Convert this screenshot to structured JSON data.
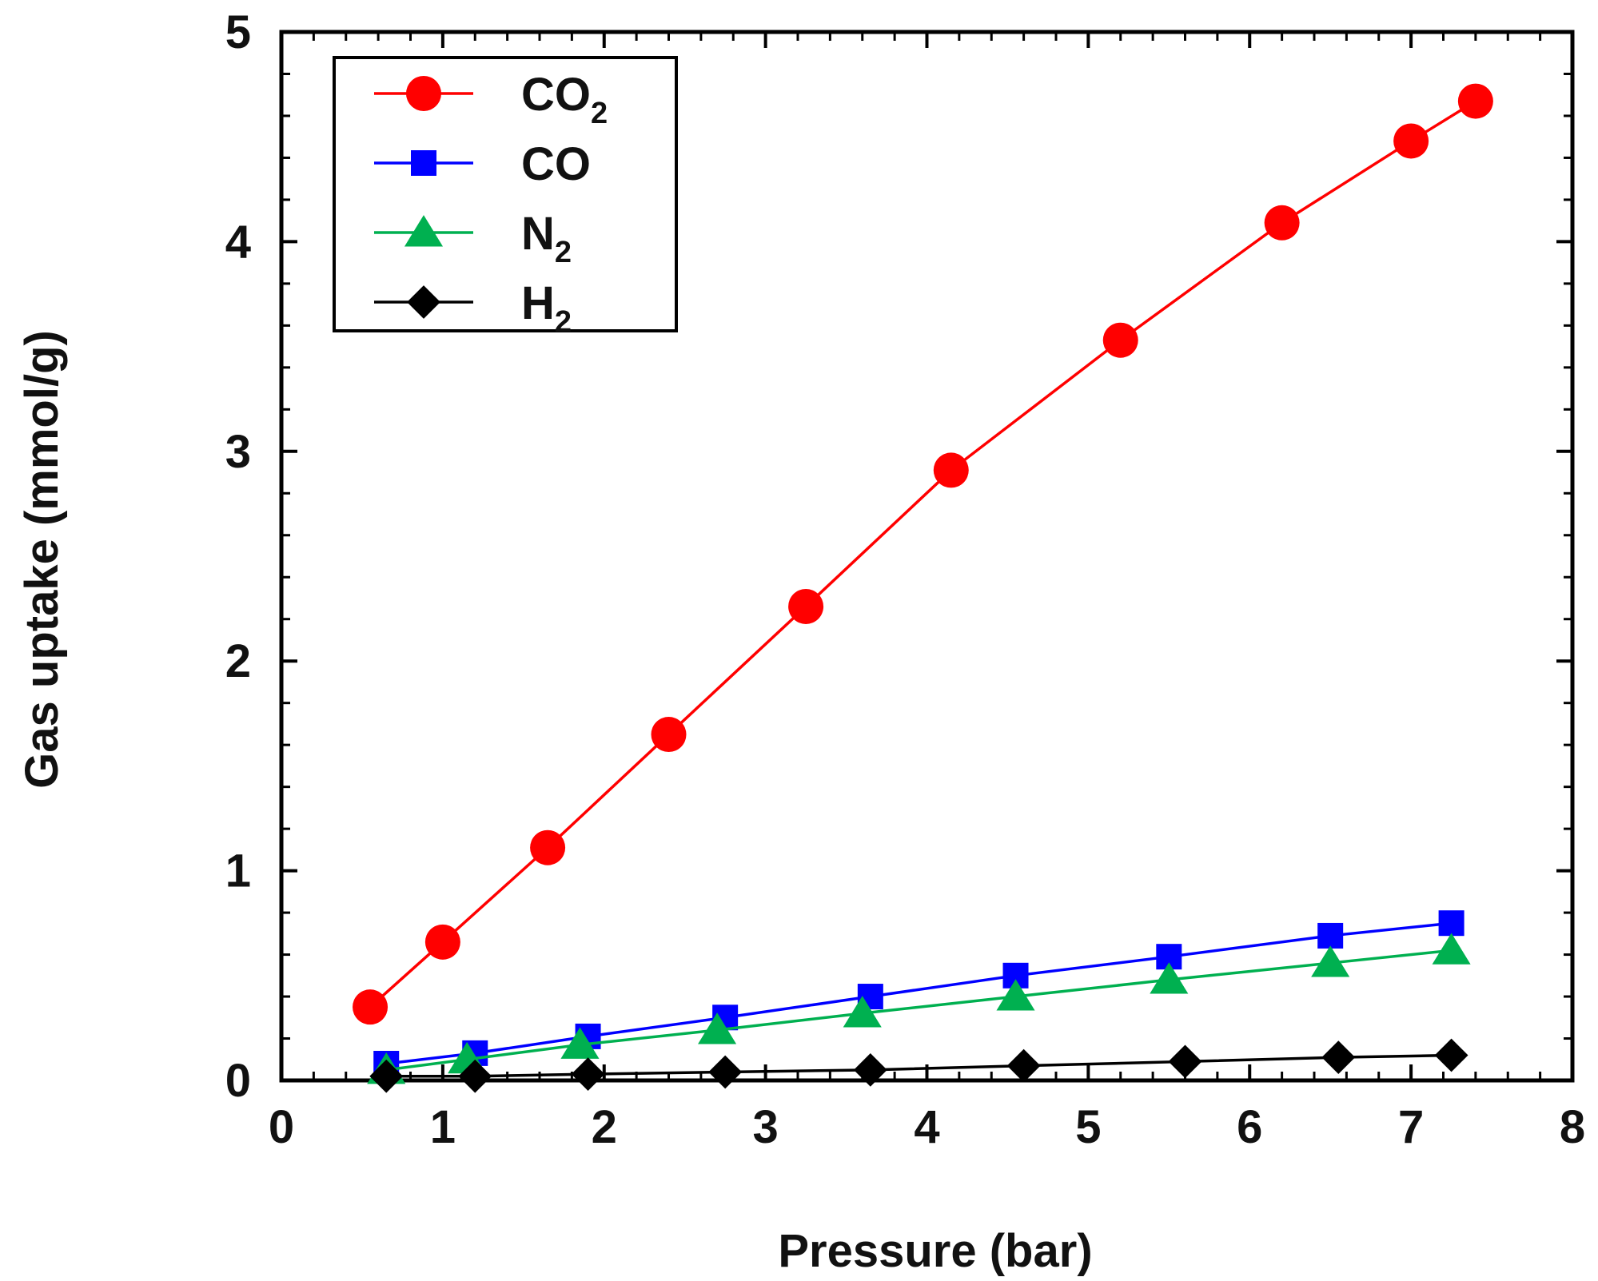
{
  "chart_data": {
    "type": "line",
    "title": "",
    "xlabel": "Pressure (bar)",
    "ylabel": "Gas uptake (mmol/g)",
    "xlim": [
      0,
      8
    ],
    "ylim": [
      0,
      5
    ],
    "x_ticks": [
      0,
      1,
      2,
      3,
      4,
      5,
      6,
      7,
      8
    ],
    "y_ticks": [
      0,
      1,
      2,
      3,
      4,
      5
    ],
    "x_tick_labels": [
      "0",
      "1",
      "2",
      "3",
      "4",
      "5",
      "6",
      "7",
      "8"
    ],
    "y_tick_labels": [
      "0",
      "1",
      "2",
      "3",
      "4",
      "5"
    ],
    "grid": false,
    "legend_position": "top-left",
    "series": [
      {
        "name": "CO2",
        "label_main": "CO",
        "label_sub": "2",
        "color": "#ff0000",
        "marker": "circle",
        "x": [
          0.55,
          1.0,
          1.65,
          2.4,
          3.25,
          4.15,
          5.2,
          6.2,
          7.0,
          7.4
        ],
        "y": [
          0.35,
          0.66,
          1.11,
          1.65,
          2.26,
          2.91,
          3.53,
          4.09,
          4.48,
          4.67
        ]
      },
      {
        "name": "CO",
        "label_main": "CO",
        "label_sub": "",
        "color": "#0000ff",
        "marker": "square",
        "x": [
          0.65,
          1.2,
          1.9,
          2.75,
          3.65,
          4.55,
          5.5,
          6.5,
          7.25
        ],
        "y": [
          0.08,
          0.13,
          0.21,
          0.3,
          0.4,
          0.5,
          0.59,
          0.69,
          0.75
        ]
      },
      {
        "name": "N2",
        "label_main": "N",
        "label_sub": "2",
        "color": "#00b050",
        "marker": "triangle",
        "x": [
          0.65,
          1.15,
          1.85,
          2.7,
          3.6,
          4.55,
          5.5,
          6.5,
          7.25
        ],
        "y": [
          0.05,
          0.1,
          0.17,
          0.24,
          0.32,
          0.4,
          0.48,
          0.56,
          0.62
        ]
      },
      {
        "name": "H2",
        "label_main": "H",
        "label_sub": "2",
        "color": "#000000",
        "marker": "diamond",
        "x": [
          0.65,
          1.2,
          1.9,
          2.75,
          3.65,
          4.6,
          5.6,
          6.55,
          7.25
        ],
        "y": [
          0.02,
          0.02,
          0.03,
          0.04,
          0.05,
          0.07,
          0.09,
          0.11,
          0.12
        ]
      }
    ]
  }
}
